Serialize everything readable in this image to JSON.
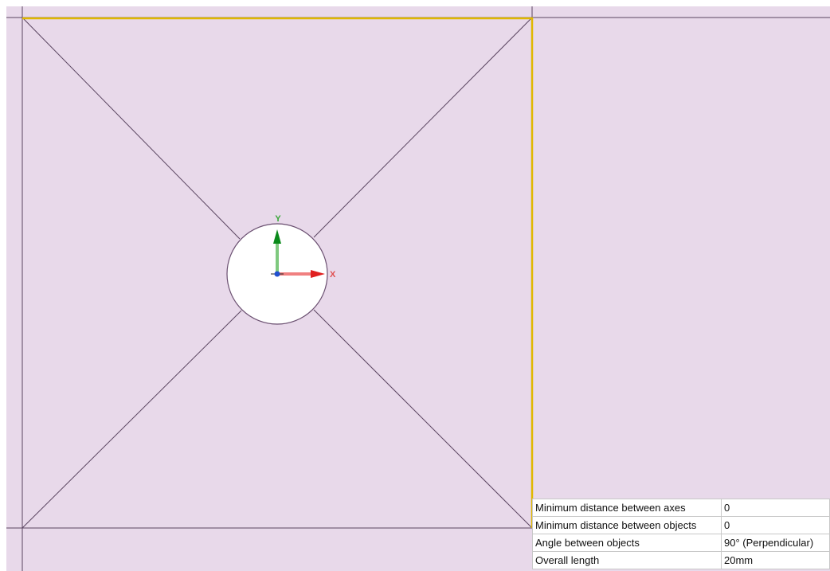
{
  "axes": {
    "y": "Y",
    "x": "X"
  },
  "table": {
    "rows": [
      [
        "Minimum distance between axes",
        "0"
      ],
      [
        "Minimum distance between objects",
        "0"
      ],
      [
        "Angle between objects",
        "90° (Perpendicular)"
      ],
      [
        "Overall length",
        "20mm"
      ]
    ]
  }
}
